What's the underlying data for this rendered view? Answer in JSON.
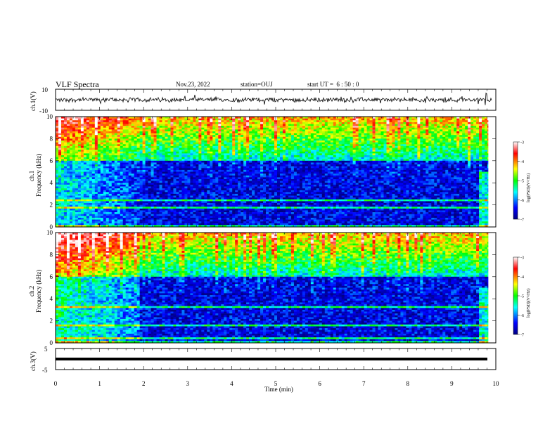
{
  "header": {
    "title": "VLF Spectra",
    "date": "Nov.23, 2022",
    "station": "station=OUJ",
    "start_ut": "start UT =  6 : 50 : 0"
  },
  "chart_data": [
    {
      "type": "line",
      "panel": "ch1-waveform",
      "ylabel": "ch.1(V)",
      "ylim": [
        -10,
        10
      ],
      "yticks": [
        "10",
        "-10"
      ],
      "xlim": [
        0,
        10
      ],
      "description_values": {
        "baseline": 0,
        "typical_amplitude": 2,
        "burst_at_min": 9.8
      }
    },
    {
      "type": "heatmap",
      "panel": "ch1-spectrogram",
      "ylabel": "ch.1\nFrequency (kHz)",
      "ylim": [
        0,
        10
      ],
      "yticks": [
        "0",
        "2",
        "4",
        "6",
        "8",
        "10"
      ],
      "xlim": [
        0,
        10
      ],
      "colorbar": {
        "label": "log(PSD)(V²/Hz)",
        "range": [
          -7,
          -3
        ],
        "ticks": [
          "-3",
          "-4",
          "-5",
          "-6",
          "-7"
        ]
      }
    },
    {
      "type": "heatmap",
      "panel": "ch2-spectrogram",
      "ylabel": "ch.2\nFrequency (kHz)",
      "ylim": [
        0,
        10
      ],
      "yticks": [
        "0",
        "2",
        "4",
        "6",
        "8",
        "10"
      ],
      "xlim": [
        0,
        10
      ],
      "colorbar": {
        "label": "log(PSD)(V²/Hz)",
        "range": [
          -7,
          -3
        ],
        "ticks": [
          "-3",
          "-4",
          "-5",
          "-6",
          "-7"
        ]
      }
    },
    {
      "type": "line",
      "panel": "ch3-waveform",
      "ylabel": "ch.3(V)",
      "ylim": [
        -5,
        5
      ],
      "yticks": [
        "5",
        "-5"
      ],
      "xlim": [
        0,
        10
      ],
      "xlabel": "Time (min)",
      "xticks": [
        "0",
        "1",
        "2",
        "3",
        "4",
        "5",
        "6",
        "7",
        "8",
        "9",
        "10"
      ],
      "description_values": {
        "constant_level": 0
      }
    }
  ],
  "labels": {
    "ch1_ylabel": "ch.1(V)",
    "ch1spec_ylabel_a": "ch.1",
    "ch1spec_ylabel_b": "Frequency (kHz)",
    "ch2spec_ylabel_a": "ch.2",
    "ch2spec_ylabel_b": "Frequency (kHz)",
    "ch3_ylabel": "ch.3(V)",
    "xlabel": "Time (min)",
    "cbar_label": "log(PSD)(V²/Hz)"
  }
}
